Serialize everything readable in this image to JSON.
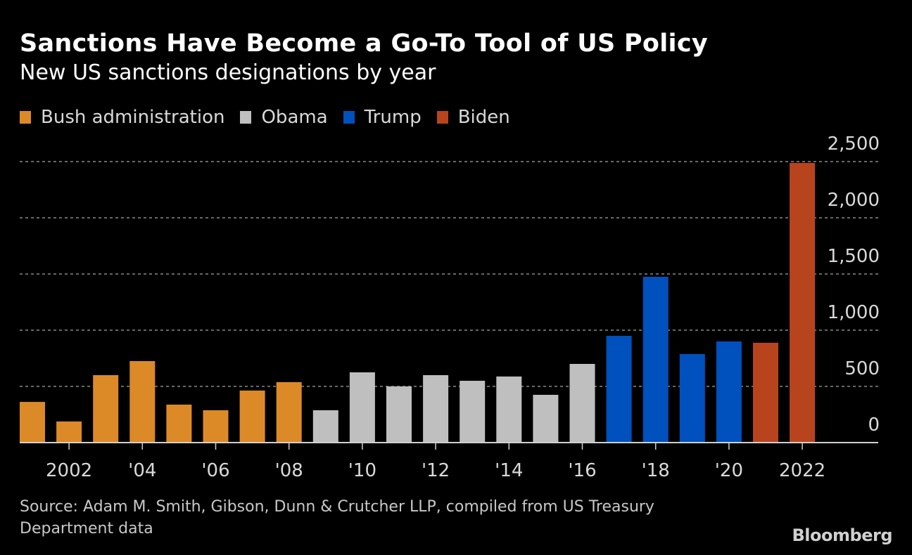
{
  "header": {
    "title": "Sanctions Have Become a Go-To Tool of US Policy",
    "subtitle": "New US sanctions designations by year"
  },
  "legend": [
    {
      "label": "Bush administration",
      "color": "#dc8a28"
    },
    {
      "label": "Obama",
      "color": "#bfbfbf"
    },
    {
      "label": "Trump",
      "color": "#0050bd"
    },
    {
      "label": "Biden",
      "color": "#b8441e"
    }
  ],
  "footer": {
    "source": "Source: Adam M. Smith, Gibson, Dunn & Crutcher LLP, compiled from US Treasury Department data",
    "brand": "Bloomberg"
  },
  "chart_data": {
    "type": "bar",
    "title": "Sanctions Have Become a Go-To Tool of US Policy",
    "subtitle": "New US sanctions designations by year",
    "xlabel": "",
    "ylabel": "",
    "ylim": [
      0,
      2500
    ],
    "grid": true,
    "y_axis_side": "right",
    "legend_position": "top-left",
    "yticks": [
      0,
      500,
      1000,
      1500,
      2000,
      2500
    ],
    "ytick_labels": [
      "0",
      "500",
      "1,000",
      "1,500",
      "2,000",
      "2,500"
    ],
    "xtick_years": [
      2002,
      2004,
      2006,
      2008,
      2010,
      2012,
      2014,
      2016,
      2018,
      2020,
      2022
    ],
    "xtick_labels": [
      "2002",
      "'04",
      "'06",
      "'08",
      "'10",
      "'12",
      "'14",
      "'16",
      "'18",
      "'20",
      "2022"
    ],
    "categories": [
      2001,
      2002,
      2003,
      2004,
      2005,
      2006,
      2007,
      2008,
      2009,
      2010,
      2011,
      2012,
      2013,
      2014,
      2015,
      2016,
      2017,
      2018,
      2019,
      2020,
      2021,
      2022
    ],
    "values": [
      362,
      188,
      600,
      725,
      338,
      288,
      463,
      538,
      288,
      625,
      500,
      600,
      550,
      588,
      425,
      700,
      950,
      1475,
      788,
      900,
      888,
      2488
    ],
    "groups": [
      "Bush administration",
      "Bush administration",
      "Bush administration",
      "Bush administration",
      "Bush administration",
      "Bush administration",
      "Bush administration",
      "Bush administration",
      "Obama",
      "Obama",
      "Obama",
      "Obama",
      "Obama",
      "Obama",
      "Obama",
      "Obama",
      "Trump",
      "Trump",
      "Trump",
      "Trump",
      "Biden",
      "Biden"
    ]
  }
}
